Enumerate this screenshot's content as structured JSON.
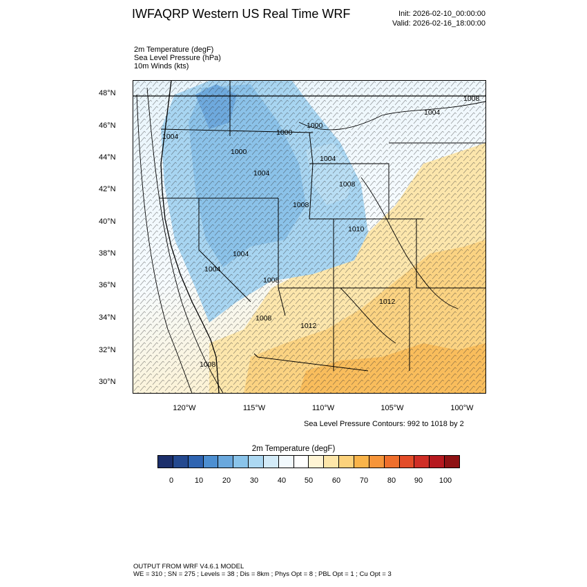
{
  "title": "IWFAQRP Western US Real Time WRF",
  "init": "Init: 2026-02-10_00:00:00",
  "valid": "Valid: 2026-02-16_18:00:00",
  "variables": [
    "2m Temperature   (degF)",
    "Sea Level Pressure   (hPa)",
    "10m Winds   (kts)"
  ],
  "lat_labels": [
    "48°N",
    "46°N",
    "44°N",
    "42°N",
    "40°N",
    "38°N",
    "36°N",
    "34°N",
    "32°N",
    "30°N"
  ],
  "lon_labels": [
    "120°W",
    "115°W",
    "110°W",
    "105°W",
    "100°W"
  ],
  "slp_note": "Sea Level Pressure Contours: 992 to 1018 by 2",
  "colorbar": {
    "title": "2m Temperature  (degF)",
    "ticks": [
      "0",
      "10",
      "20",
      "30",
      "40",
      "50",
      "60",
      "70",
      "80",
      "90",
      "100"
    ],
    "colors": [
      "#1c2f6b",
      "#24498f",
      "#2f64b1",
      "#4d8fd1",
      "#6aa8dd",
      "#8ac4ea",
      "#acd8f2",
      "#d3ebf8",
      "#f2f9fd",
      "#ffffff",
      "#fff4d4",
      "#fde6a9",
      "#fcd27c",
      "#f9b44a",
      "#f6953a",
      "#ef6f2c",
      "#e34c28",
      "#cf2e26",
      "#b6191f",
      "#8e1214"
    ]
  },
  "contour_labels": [
    "1008",
    "1004",
    "1000",
    "1000",
    "1004",
    "1000",
    "1004",
    "1004",
    "1008",
    "1008",
    "1010",
    "1004",
    "1004",
    "1008",
    "1012",
    "1008",
    "1012",
    "1008"
  ],
  "footer": {
    "line1": "OUTPUT FROM WRF V4.6.1 MODEL",
    "line2": "WE = 310 ; SN = 275 ; Levels = 38 ; Dis = 8km ; Phys Opt = 8 ; PBL Opt = 1 ; Cu Opt = 3"
  }
}
